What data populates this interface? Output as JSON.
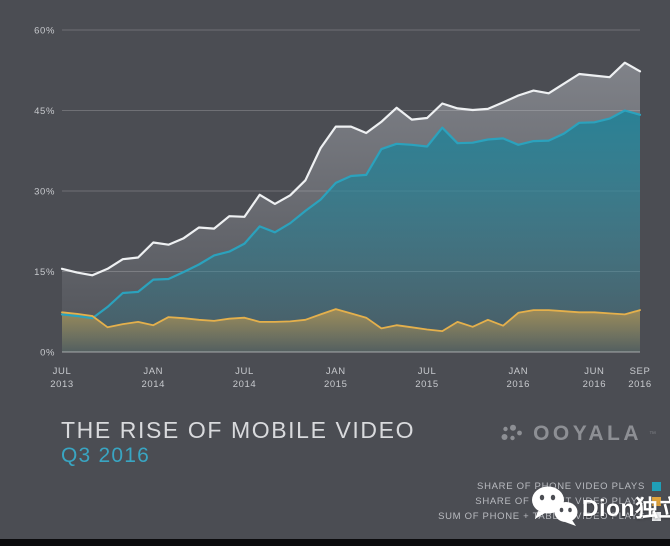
{
  "header": {
    "title": "THE RISE OF MOBILE VIDEO",
    "subtitle": "Q3 2016"
  },
  "brand": {
    "name": "OOYALA",
    "mark": "™",
    "icon": "ooyala-dots-icon",
    "color": "#8d8f94"
  },
  "legend": {
    "items": [
      {
        "label": "SHARE OF PHONE VIDEO PLAYS",
        "color": "#1f9fb7"
      },
      {
        "label": "SHARE OF TABLET VIDEO PLAYS",
        "color": "#dfa33d"
      },
      {
        "label": "SUM OF PHONE + TABLET VIDEO PLAYS",
        "color": "#e9eaec"
      }
    ]
  },
  "watermark": {
    "text": "Dion独立站",
    "icon": "wechat-icon",
    "color": "#ffffff"
  },
  "colors": {
    "background": "#4b4d53",
    "grid": "rgba(255,255,255,0.20)",
    "zero_line": "rgba(255,255,255,0.50)",
    "axis_text": "#c7c9cd",
    "title_text": "#d9dadd",
    "subtitle_text": "#39a5c2",
    "legend_text": "#b9bbc0",
    "bottom_bar": "#0b0b0d"
  },
  "chart_data": {
    "type": "area",
    "title": "THE RISE OF MOBILE VIDEO",
    "subtitle": "Q3 2016",
    "x_unit": "month",
    "grid": true,
    "legend_position": "bottom-right",
    "ylim": [
      0,
      60
    ],
    "yticks": [
      "0%",
      "15%",
      "30%",
      "45%",
      "60%"
    ],
    "xticks": [
      {
        "index": 0,
        "month": "JUL",
        "year": "2013"
      },
      {
        "index": 6,
        "month": "JAN",
        "year": "2014"
      },
      {
        "index": 12,
        "month": "JUL",
        "year": "2014"
      },
      {
        "index": 18,
        "month": "JAN",
        "year": "2015"
      },
      {
        "index": 24,
        "month": "JUL",
        "year": "2015"
      },
      {
        "index": 30,
        "month": "JAN",
        "year": "2016"
      },
      {
        "index": 35,
        "month": "JUN",
        "year": "2016"
      },
      {
        "index": 38,
        "month": "SEP",
        "year": "2016"
      }
    ],
    "x_months": [
      "Jul 2013",
      "Aug 2013",
      "Sep 2013",
      "Oct 2013",
      "Nov 2013",
      "Dec 2013",
      "Jan 2014",
      "Feb 2014",
      "Mar 2014",
      "Apr 2014",
      "May 2014",
      "Jun 2014",
      "Jul 2014",
      "Aug 2014",
      "Sep 2014",
      "Oct 2014",
      "Nov 2014",
      "Dec 2014",
      "Jan 2015",
      "Feb 2015",
      "Mar 2015",
      "Apr 2015",
      "May 2015",
      "Jun 2015",
      "Jul 2015",
      "Aug 2015",
      "Sep 2015",
      "Oct 2015",
      "Nov 2015",
      "Dec 2015",
      "Jan 2016",
      "Feb 2016",
      "Mar 2016",
      "Apr 2016",
      "May 2016",
      "Jun 2016",
      "Jul 2016",
      "Aug 2016",
      "Sep 2016"
    ],
    "series": [
      {
        "key": "sum",
        "name": "SUM OF PHONE + TABLET VIDEO PLAYS",
        "color": "#eef0f2",
        "fill": "#c9ccd3",
        "fill_opacity_top": 0.42,
        "fill_opacity_bottom": 0.04,
        "width": 2.2,
        "values": [
          15.5,
          14.8,
          14.3,
          15.5,
          17.3,
          17.6,
          20.4,
          20.0,
          21.2,
          23.2,
          23.0,
          25.3,
          25.2,
          29.3,
          27.6,
          29.2,
          32.0,
          38.0,
          42.0,
          42.0,
          40.8,
          42.9,
          45.5,
          43.3,
          43.6,
          46.3,
          45.4,
          45.1,
          45.3,
          46.5,
          47.8,
          48.7,
          48.2,
          50.0,
          51.8,
          51.5,
          51.2,
          53.9,
          52.3
        ]
      },
      {
        "key": "phone",
        "name": "SHARE OF PHONE VIDEO PLAYS",
        "color": "#2ba2bd",
        "fill": "#1f8298",
        "fill_opacity_top": 0.88,
        "fill_opacity_bottom": 0.15,
        "width": 2.2,
        "values": [
          7.0,
          6.7,
          6.3,
          8.4,
          11.0,
          11.2,
          13.5,
          13.6,
          14.9,
          16.3,
          18.0,
          18.7,
          20.2,
          23.4,
          22.3,
          24.0,
          26.3,
          28.4,
          31.5,
          32.8,
          33.0,
          37.8,
          38.8,
          38.6,
          38.3,
          41.8,
          38.9,
          39.0,
          39.6,
          39.8,
          38.6,
          39.3,
          39.4,
          40.7,
          42.7,
          42.8,
          43.5,
          45.0,
          44.2
        ]
      },
      {
        "key": "tablet",
        "name": "SHARE OF TABLET VIDEO PLAYS",
        "color": "#e4b04c",
        "fill": "#caa04e",
        "fill_opacity_top": 0.65,
        "fill_opacity_bottom": 0.08,
        "width": 1.8,
        "values": [
          7.4,
          7.1,
          6.7,
          4.6,
          5.2,
          5.6,
          5.0,
          6.5,
          6.3,
          6.0,
          5.8,
          6.2,
          6.4,
          5.6,
          5.6,
          5.7,
          6.0,
          7.0,
          8.0,
          7.2,
          6.4,
          4.4,
          5.0,
          4.6,
          4.2,
          3.9,
          5.6,
          4.7,
          6.0,
          4.9,
          7.3,
          7.8,
          7.8,
          7.6,
          7.4,
          7.4,
          7.2,
          7.0,
          7.8
        ]
      }
    ]
  }
}
